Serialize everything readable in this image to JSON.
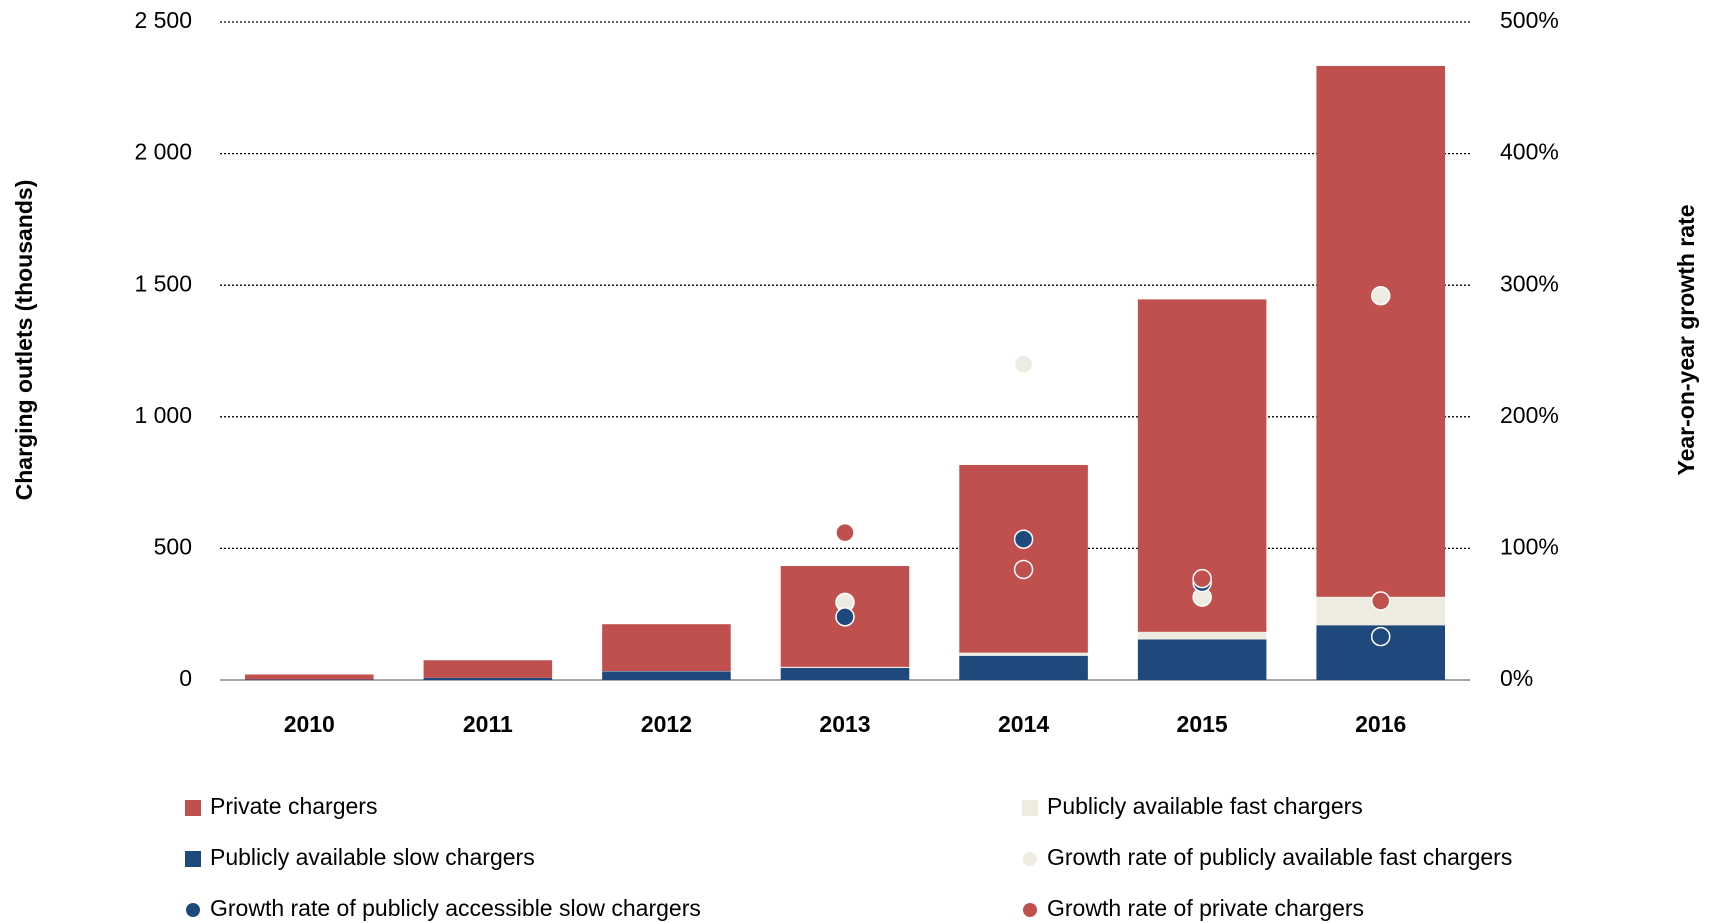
{
  "chart_data": {
    "type": "bar",
    "y_label": "Charging outlets (thousands)",
    "y2_label": "Year-on-year growth rate",
    "categories": [
      "2010",
      "2011",
      "2012",
      "2013",
      "2014",
      "2015",
      "2016"
    ],
    "series": [
      {
        "name": "Publicly available slow chargers",
        "color": "#1f497d",
        "values": [
          2,
          8,
          33,
          46,
          92,
          154,
          208
        ]
      },
      {
        "name": "Publicly available fast chargers",
        "color": "#eeece1",
        "values": [
          0,
          0,
          1,
          4,
          12,
          29,
          108
        ]
      },
      {
        "name": "Private chargers",
        "color": "#c0504d",
        "values": [
          19,
          67,
          178,
          383,
          713,
          1263,
          2017
        ]
      },
      {
        "name": "Growth rate of publicly available fast chargers",
        "type": "scatter",
        "axis": "y2",
        "color": "#eeece1",
        "values": [
          null,
          null,
          null,
          59,
          240,
          63,
          292
        ]
      },
      {
        "name": "Growth rate of publicly accessible slow chargers",
        "type": "scatter",
        "axis": "y2",
        "color": "#1f497d",
        "values": [
          null,
          null,
          null,
          48,
          107,
          74,
          33
        ]
      },
      {
        "name": "Growth rate of private chargers",
        "type": "scatter",
        "axis": "y2",
        "color": "#c0504d",
        "values": [
          null,
          null,
          null,
          112,
          84,
          77,
          60
        ]
      }
    ],
    "ylim": [
      0,
      2500
    ],
    "yticks": [
      0,
      500,
      {
        "value": 1000,
        "label": "1 000"
      },
      {
        "value": 1500,
        "label": "1 500"
      },
      {
        "value": 2000,
        "label": "2 000"
      },
      {
        "value": 2500,
        "label": "2 500"
      }
    ],
    "y2lim": [
      0,
      500
    ],
    "y2ticks": [
      {
        "value": 0,
        "label": "0%"
      },
      {
        "value": 100,
        "label": "100%"
      },
      {
        "value": 200,
        "label": "200%"
      },
      {
        "value": 300,
        "label": "300%"
      },
      {
        "value": 400,
        "label": "400%"
      },
      {
        "value": 500,
        "label": "500%"
      }
    ],
    "grid": true
  }
}
